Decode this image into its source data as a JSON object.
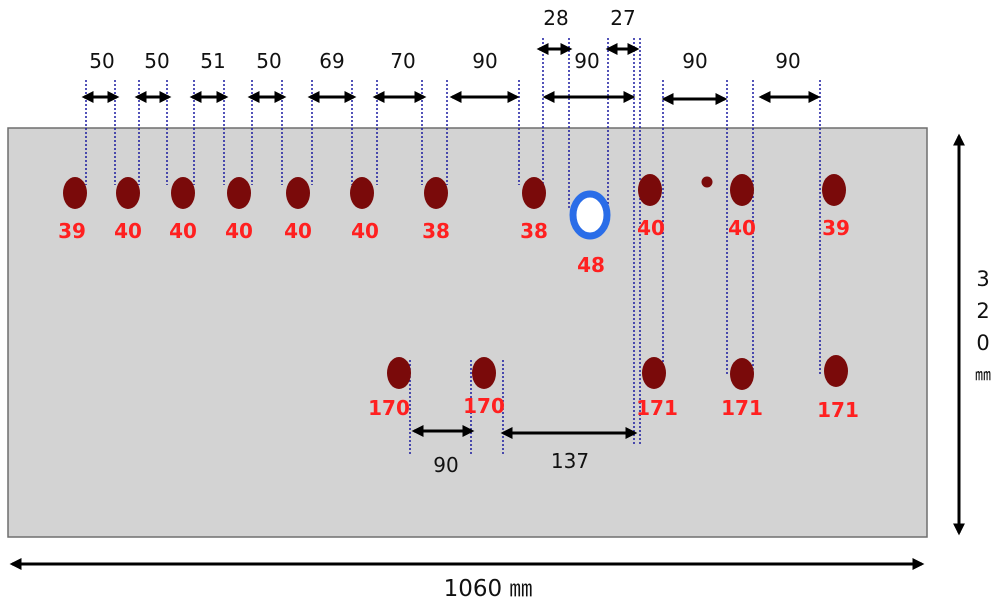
{
  "colors": {
    "plate": "#d3d3d3",
    "plate_border": "#6e6e6e",
    "hole": "#7a0a0a",
    "ring": "#2a6de8",
    "label": "#ff2020",
    "guide": "#1a1aa0",
    "arrow": "#000000"
  },
  "top_spacings": [
    "50",
    "50",
    "51",
    "50",
    "69",
    "70",
    "90",
    "90",
    "90",
    "90"
  ],
  "small_spacings": [
    "28",
    "27"
  ],
  "bottom_spacings": [
    "90",
    "137"
  ],
  "top_hole_labels": [
    "39",
    "40",
    "40",
    "40",
    "40",
    "40",
    "38",
    "38",
    "40",
    "40",
    "39"
  ],
  "center_hole_label": "48",
  "bottom_hole_labels": [
    "170",
    "170",
    "171",
    "171",
    "171"
  ],
  "width_label": "1060 ㎜",
  "height_label": {
    "d1": "3",
    "d2": "2",
    "d3": "0",
    "unit": "㎜"
  }
}
